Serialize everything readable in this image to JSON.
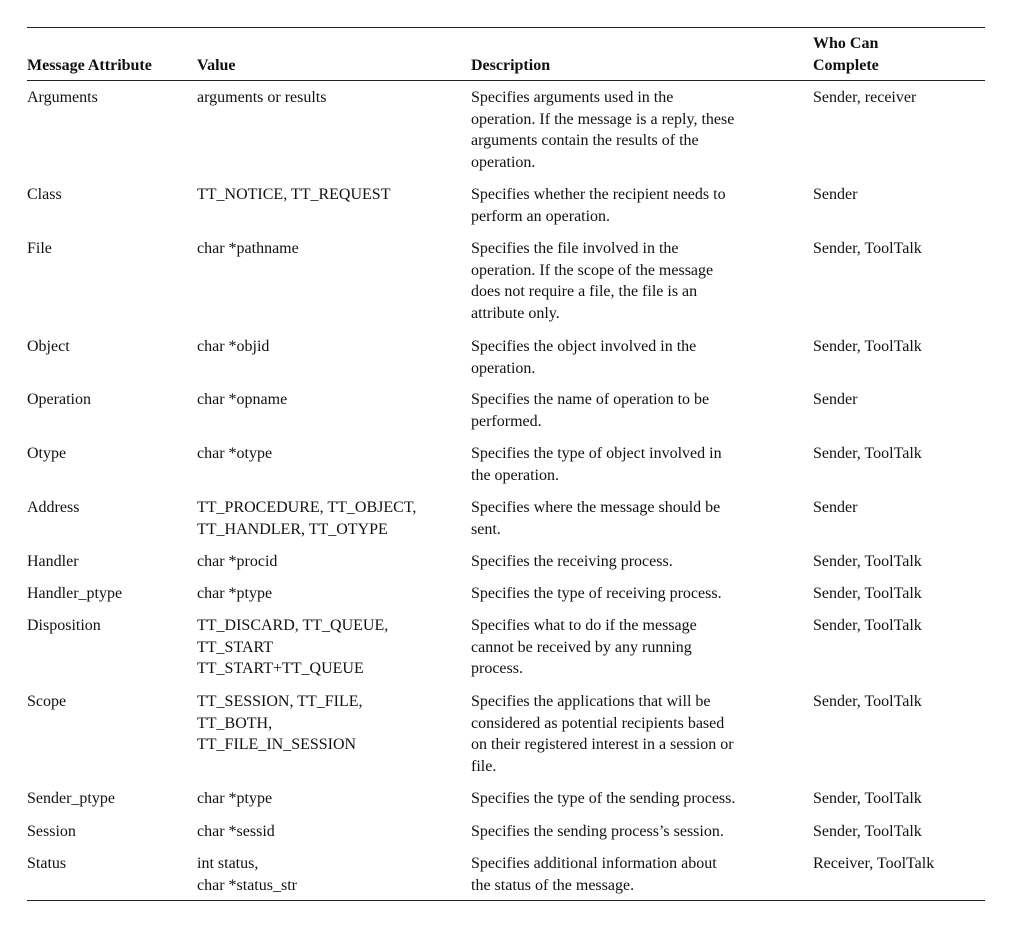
{
  "table": {
    "headers": [
      [
        "Message Attribute"
      ],
      [
        "Value"
      ],
      [
        "Description"
      ],
      [
        "Who Can",
        "Complete"
      ]
    ],
    "rows": [
      {
        "attribute": [
          "Arguments"
        ],
        "value": [
          "arguments or results"
        ],
        "description": [
          "Specifies arguments used in the",
          "operation. If the message is a reply, these",
          "arguments contain the results of the",
          "operation."
        ],
        "who": [
          "Sender, receiver"
        ]
      },
      {
        "attribute": [
          "Class"
        ],
        "value": [
          "TT_NOTICE, TT_REQUEST"
        ],
        "description": [
          "Specifies whether the recipient needs to",
          "perform an operation."
        ],
        "who": [
          "Sender"
        ]
      },
      {
        "attribute": [
          "File"
        ],
        "value": [
          "char *pathname"
        ],
        "description": [
          "Specifies the file involved in the",
          "operation. If the scope of the message",
          "does not require a file, the file is an",
          "attribute only."
        ],
        "who": [
          "Sender, ToolTalk"
        ]
      },
      {
        "attribute": [
          "Object"
        ],
        "value": [
          "char *objid"
        ],
        "description": [
          "Specifies the object involved in the",
          "operation."
        ],
        "who": [
          "Sender, ToolTalk"
        ]
      },
      {
        "attribute": [
          "Operation"
        ],
        "value": [
          "char *opname"
        ],
        "description": [
          "Specifies the name of operation to be",
          "performed."
        ],
        "who": [
          "Sender"
        ]
      },
      {
        "attribute": [
          "Otype"
        ],
        "value": [
          "char *otype"
        ],
        "description": [
          "Specifies the type of object involved in",
          "the operation."
        ],
        "who": [
          "Sender, ToolTalk"
        ]
      },
      {
        "attribute": [
          "Address"
        ],
        "value": [
          "TT_PROCEDURE, TT_OBJECT,",
          "TT_HANDLER, TT_OTYPE"
        ],
        "description": [
          "Specifies where the message should be",
          "sent."
        ],
        "who": [
          "Sender"
        ]
      },
      {
        "attribute": [
          "Handler"
        ],
        "value": [
          "char *procid"
        ],
        "description": [
          "Specifies the receiving process."
        ],
        "who": [
          "Sender, ToolTalk"
        ]
      },
      {
        "attribute": [
          "Handler_ptype"
        ],
        "value": [
          "char *ptype"
        ],
        "description": [
          "Specifies the type of receiving process."
        ],
        "who": [
          "Sender, ToolTalk"
        ]
      },
      {
        "attribute": [
          "Disposition"
        ],
        "value": [
          "TT_DISCARD, TT_QUEUE,",
          "TT_START",
          "TT_START+TT_QUEUE"
        ],
        "description": [
          "Specifies what to do if the message",
          "cannot be received by any running",
          "process."
        ],
        "who": [
          "Sender, ToolTalk"
        ]
      },
      {
        "attribute": [
          "Scope"
        ],
        "value": [
          "TT_SESSION, TT_FILE,",
          "TT_BOTH,",
          "TT_FILE_IN_SESSION"
        ],
        "description": [
          "Specifies the applications that will be",
          "considered as potential recipients based",
          "on their registered interest in a session or",
          "file."
        ],
        "who": [
          "Sender, ToolTalk"
        ]
      },
      {
        "attribute": [
          "Sender_ptype"
        ],
        "value": [
          "char *ptype"
        ],
        "description": [
          "Specifies the type of the sending process."
        ],
        "who": [
          "Sender, ToolTalk"
        ]
      },
      {
        "attribute": [
          "Session"
        ],
        "value": [
          "char *sessid"
        ],
        "description": [
          "Specifies the sending process’s session."
        ],
        "who": [
          "Sender, ToolTalk"
        ]
      },
      {
        "attribute": [
          "Status"
        ],
        "value": [
          "int status,",
          "char *status_str"
        ],
        "description": [
          "Specifies additional information about",
          "the status of the message."
        ],
        "who": [
          "Receiver, ToolTalk"
        ]
      }
    ]
  }
}
